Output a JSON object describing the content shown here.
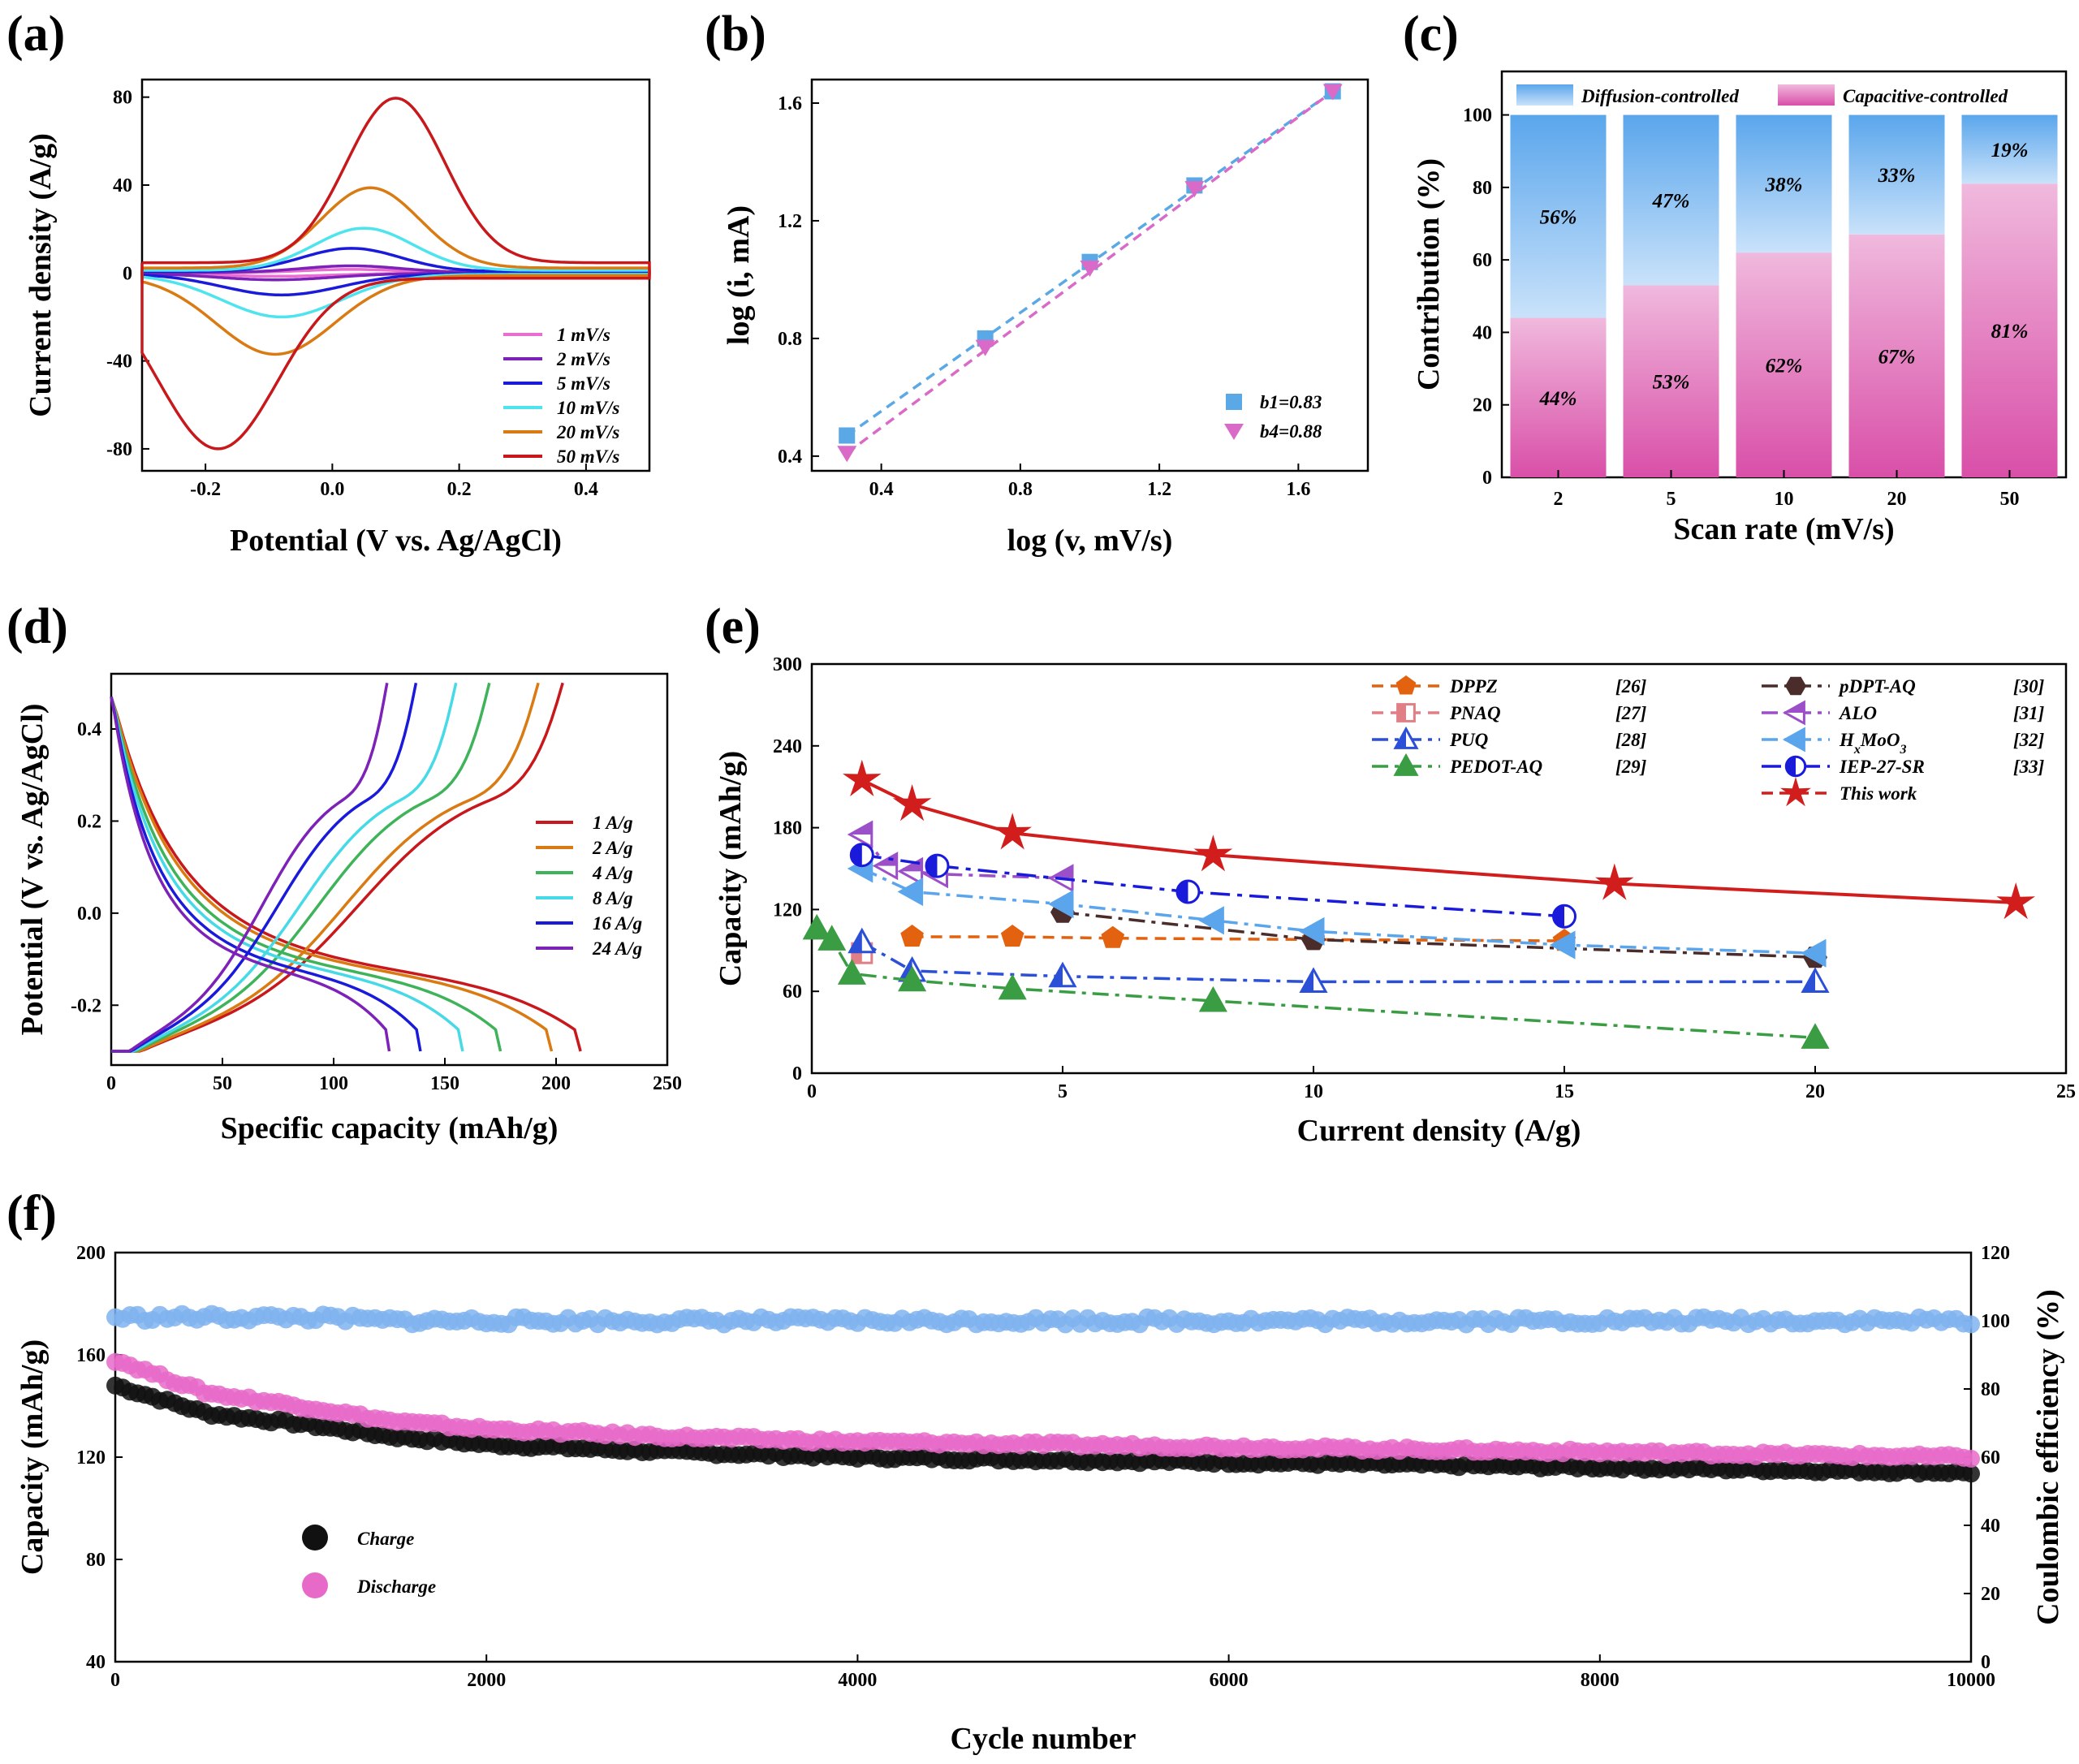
{
  "colors": {
    "cv": [
      "#e86fcf",
      "#7d22b8",
      "#1a1adb",
      "#4ee4ee",
      "#d97b12",
      "#c8181c"
    ],
    "rate": [
      "#c8181c",
      "#d97b12",
      "#3fb35a",
      "#46d9e6",
      "#1a1adb",
      "#7d22b8"
    ],
    "diffusion": "#7ab8ee",
    "capacitive": "#e066b5",
    "b1": "#5aa9e6",
    "b4": "#d96ac8",
    "charge": "#111111",
    "discharge": "#e76ac9",
    "ce": "#7fb3ee"
  },
  "panels": {
    "a": {
      "label": "(a)",
      "chart_data": {
        "type": "line",
        "xlabel": "Potential (V vs. Ag/AgCl)",
        "ylabel": "Current density (A/g)",
        "xlim": [
          -0.3,
          0.5
        ],
        "ylim": [
          -90,
          88
        ],
        "xticks": [
          -0.2,
          0.0,
          0.2,
          0.4
        ],
        "xtick_labels": [
          "-0.2",
          "0.0",
          "0.2",
          "0.4"
        ],
        "yticks": [
          -80,
          -40,
          0,
          40,
          80
        ],
        "ytick_labels": [
          "-80",
          "-40",
          "0",
          "40",
          "80"
        ],
        "series": [
          {
            "name": "1  mV/s",
            "peak_anodic": [
              0.03,
              1.6
            ],
            "peak_cathodic": [
              -0.09,
              -1.5
            ]
          },
          {
            "name": "2  mV/s",
            "peak_anodic": [
              0.03,
              3.2
            ],
            "peak_cathodic": [
              -0.09,
              -3.1
            ]
          },
          {
            "name": "5  mV/s",
            "peak_anodic": [
              0.03,
              11
            ],
            "peak_cathodic": [
              -0.08,
              -10
            ]
          },
          {
            "name": "10 mV/s",
            "peak_anodic": [
              0.05,
              20
            ],
            "peak_cathodic": [
              -0.08,
              -20
            ]
          },
          {
            "name": "20 mV/s",
            "peak_anodic": [
              0.06,
              38
            ],
            "peak_cathodic": [
              -0.09,
              -37
            ]
          },
          {
            "name": "50 mV/s",
            "peak_anodic": [
              0.1,
              78
            ],
            "peak_cathodic": [
              -0.18,
              -80
            ]
          }
        ]
      }
    },
    "b": {
      "label": "(b)",
      "chart_data": {
        "type": "scatter",
        "xlabel": "log (v, mV/s)",
        "ylabel": "log (i, mA)",
        "xlim": [
          0.2,
          1.8
        ],
        "ylim": [
          0.35,
          1.68
        ],
        "xticks": [
          0.4,
          0.8,
          1.2,
          1.6
        ],
        "xtick_labels": [
          "0.4",
          "0.8",
          "1.2",
          "1.6"
        ],
        "yticks": [
          0.4,
          0.8,
          1.2,
          1.6
        ],
        "ytick_labels": [
          "0.4",
          "0.8",
          "1.2",
          "1.6"
        ],
        "x": [
          0.301,
          0.699,
          1.0,
          1.301,
          1.699
        ],
        "series": [
          {
            "name": "b1=0.83",
            "values": [
              0.47,
              0.8,
              1.06,
              1.32,
              1.64
            ]
          },
          {
            "name": "b4=0.88",
            "values": [
              0.41,
              0.77,
              1.04,
              1.31,
              1.64
            ]
          }
        ]
      }
    },
    "c": {
      "label": "(c)",
      "chart_data": {
        "type": "bar",
        "xlabel": "Scan rate (mV/s)",
        "ylabel": "Contribution (%)",
        "ylim": [
          0,
          112
        ],
        "yticks": [
          0,
          20,
          40,
          60,
          80,
          100
        ],
        "ytick_labels": [
          "0",
          "20",
          "40",
          "60",
          "80",
          "100"
        ],
        "categories": [
          "2",
          "5",
          "10",
          "20",
          "50"
        ],
        "series": [
          {
            "name": "Capacitive-controlled",
            "values": [
              44,
              53,
              62,
              67,
              81
            ],
            "labels": [
              "44%",
              "53%",
              "62%",
              "67%",
              "81%"
            ]
          },
          {
            "name": "Diffusion-controlled",
            "values": [
              56,
              47,
              38,
              33,
              19
            ],
            "labels": [
              "56%",
              "47%",
              "38%",
              "33%",
              "19%"
            ]
          }
        ]
      }
    },
    "d": {
      "label": "(d)",
      "chart_data": {
        "type": "line",
        "xlabel": "Specific capacity (mAh/g)",
        "ylabel": "Potential (V vs. Ag/AgCl)",
        "xlim": [
          0,
          250
        ],
        "ylim": [
          -0.33,
          0.52
        ],
        "xticks": [
          0,
          50,
          100,
          150,
          200,
          250
        ],
        "xtick_labels": [
          "0",
          "50",
          "100",
          "150",
          "200",
          "250"
        ],
        "yticks": [
          -0.2,
          0.0,
          0.2,
          0.4
        ],
        "ytick_labels": [
          "-0.2",
          "0.0",
          "0.2",
          "0.4"
        ],
        "series": [
          {
            "name": "1  A/g",
            "charge_capacity": 203,
            "discharge_capacity": 211
          },
          {
            "name": "2  A/g",
            "charge_capacity": 192,
            "discharge_capacity": 198
          },
          {
            "name": "4  A/g",
            "charge_capacity": 170,
            "discharge_capacity": 175
          },
          {
            "name": "8  A/g",
            "charge_capacity": 155,
            "discharge_capacity": 158
          },
          {
            "name": "16  A/g",
            "charge_capacity": 137,
            "discharge_capacity": 139
          },
          {
            "name": "24  A/g",
            "charge_capacity": 124,
            "discharge_capacity": 125
          }
        ]
      }
    },
    "e": {
      "label": "(e)",
      "chart_data": {
        "type": "line",
        "xlabel": "Current density (A/g)",
        "ylabel": "Capacity (mAh/g)",
        "xlim": [
          0,
          25
        ],
        "ylim": [
          0,
          300
        ],
        "xticks": [
          0,
          5,
          10,
          15,
          20,
          25
        ],
        "xtick_labels": [
          "0",
          "5",
          "10",
          "15",
          "20",
          "25"
        ],
        "yticks": [
          0,
          60,
          120,
          180,
          240,
          300
        ],
        "ytick_labels": [
          "0",
          "60",
          "120",
          "180",
          "240",
          "300"
        ],
        "series": [
          {
            "name": "DPPZ",
            "ref": "[26]",
            "color": "#e2620f",
            "marker": "pentagon",
            "dash": "14 9",
            "x": [
              2,
              4,
              6,
              10,
              15
            ],
            "values": [
              100,
              100,
              99,
              98,
              97
            ]
          },
          {
            "name": "PNAQ",
            "ref": "[27]",
            "color": "#e07f86",
            "marker": "square-half",
            "dash": "14 9",
            "x": [
              1
            ],
            "values": [
              88
            ]
          },
          {
            "name": "PUQ",
            "ref": "[28]",
            "color": "#2b4fd6",
            "marker": "triangle-half",
            "dash": "20 8 5 8",
            "x": [
              1,
              2,
              5,
              10,
              20
            ],
            "values": [
              96,
              75,
              71,
              67,
              67
            ]
          },
          {
            "name": "PEDOT-AQ",
            "ref": "[29]",
            "color": "#3a9d43",
            "marker": "triangle",
            "dash": "20 8 5 8",
            "x": [
              0.1,
              0.4,
              0.8,
              2,
              4,
              8,
              20
            ],
            "values": [
              106,
              98,
              73,
              68,
              62,
              53,
              26
            ]
          },
          {
            "name": "pDPT-AQ",
            "ref": "[30]",
            "color": "#4a2c2a",
            "marker": "hexagon",
            "dash": "20 8 5 8",
            "x": [
              5,
              10,
              20
            ],
            "values": [
              118,
              98,
              85
            ]
          },
          {
            "name": "ALO",
            "ref": "[31]",
            "color": "#9b4fc8",
            "marker": "tri-left-half",
            "dash": "20 8 5 8",
            "x": [
              1,
              1.5,
              2,
              2.5,
              5
            ],
            "values": [
              175,
              152,
              148,
              146,
              143
            ]
          },
          {
            "name": "H_xMoO_3",
            "ref": "[32]",
            "color": "#5aa5ec",
            "marker": "tri-left",
            "dash": "20 8 5 8",
            "x": [
              1,
              2,
              5,
              8,
              10,
              15,
              20
            ],
            "values": [
              150,
              133,
              124,
              112,
              104,
              94,
              88
            ]
          },
          {
            "name": "IEP-27-SR",
            "ref": "[33]",
            "color": "#1a1adb",
            "marker": "circle-half",
            "dash": "24 9 6 9",
            "x": [
              1,
              2.5,
              7.5,
              15
            ],
            "values": [
              160,
              152,
              133,
              115
            ]
          },
          {
            "name": "This work",
            "ref": "",
            "color": "#d21d1d",
            "marker": "star",
            "dash": "none",
            "x": [
              1,
              2,
              4,
              8,
              16,
              24
            ],
            "values": [
              215,
              197,
              176,
              160,
              139,
              125
            ]
          }
        ]
      }
    },
    "f": {
      "label": "(f)",
      "chart_data": {
        "type": "scatter",
        "xlabel": "Cycle number",
        "ylabel": "Capacity (mAh/g)",
        "y2label": "Coulombic efficiency (%)",
        "xlim": [
          0,
          10000
        ],
        "ylim": [
          40,
          200
        ],
        "y2lim": [
          0,
          120
        ],
        "xticks": [
          0,
          2000,
          4000,
          6000,
          8000,
          10000
        ],
        "xtick_labels": [
          "0",
          "2000",
          "4000",
          "6000",
          "8000",
          "10000"
        ],
        "yticks": [
          40,
          80,
          120,
          160,
          200
        ],
        "ytick_labels": [
          "40",
          "80",
          "120",
          "160",
          "200"
        ],
        "y2ticks": [
          0,
          20,
          40,
          60,
          80,
          100,
          120
        ],
        "y2tick_labels": [
          "0",
          "20",
          "40",
          "60",
          "80",
          "100",
          "120"
        ],
        "x": [
          0,
          500,
          1000,
          1500,
          2000,
          3000,
          4000,
          5000,
          6000,
          7000,
          8000,
          9000,
          10000
        ],
        "series": [
          {
            "name": "Charge",
            "values": [
              148,
              137,
              133,
              128,
              125,
              122,
              120,
              119,
              118,
              117,
              116,
              115,
              114
            ]
          },
          {
            "name": "Discharge",
            "values": [
              158,
              145,
              140,
              134,
              131,
              128,
              126,
              125,
              124,
              123,
              122,
              121,
              120
            ]
          },
          {
            "name": "Coulombic efficiency",
            "axis": "y2",
            "values": [
              101,
              101,
              101,
              100,
              100,
              100,
              100,
              100,
              100,
              100,
              100,
              100,
              100
            ]
          }
        ]
      }
    }
  }
}
